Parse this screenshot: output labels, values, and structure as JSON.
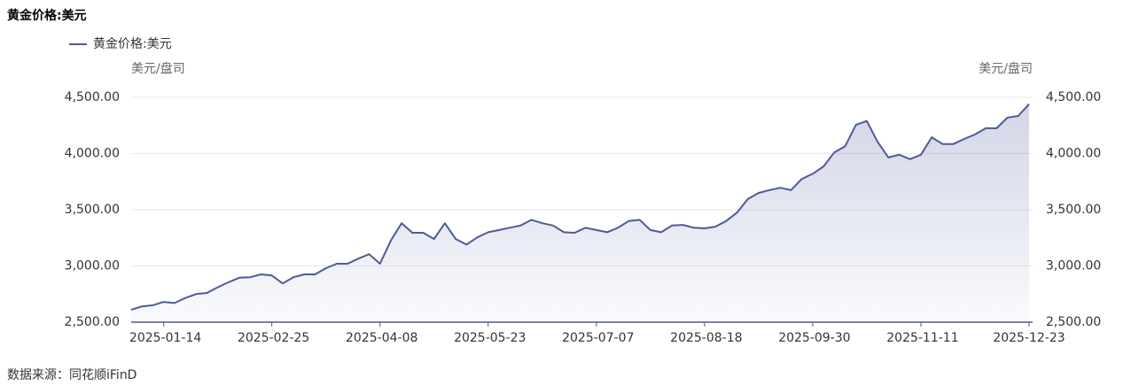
{
  "chart_data": {
    "type": "line",
    "title": "黄金价格:美元",
    "y_label": "美元/盘司",
    "y2_label": "美元/盘司",
    "source": "数据来源：同花顺iFinD",
    "categories": [
      null,
      null,
      null,
      "2025-01-14",
      null,
      null,
      null,
      null,
      null,
      null,
      null,
      null,
      null,
      "2025-02-25",
      null,
      null,
      null,
      null,
      null,
      null,
      null,
      null,
      null,
      "2025-04-08",
      null,
      null,
      null,
      null,
      null,
      null,
      null,
      null,
      null,
      "2025-05-23",
      null,
      null,
      null,
      null,
      null,
      null,
      null,
      null,
      null,
      "2025-07-07",
      null,
      null,
      null,
      null,
      null,
      null,
      null,
      null,
      null,
      "2025-08-18",
      null,
      null,
      null,
      null,
      null,
      null,
      null,
      null,
      null,
      "2025-09-30",
      null,
      null,
      null,
      null,
      null,
      null,
      null,
      null,
      null,
      "2025-11-11",
      null,
      null,
      null,
      null,
      null,
      null,
      null,
      null,
      null,
      "2025-12-23"
    ],
    "series": [
      {
        "name": "黄金价格:美元",
        "color": "#4e5a9a",
        "values": [
          2610,
          2640,
          2650,
          2680,
          2670,
          2715,
          2750,
          2760,
          2810,
          2855,
          2895,
          2900,
          2925,
          2915,
          2845,
          2900,
          2925,
          2925,
          2980,
          3020,
          3020,
          3065,
          3105,
          3020,
          3225,
          3380,
          3295,
          3295,
          3240,
          3380,
          3240,
          3190,
          3255,
          3300,
          3320,
          3340,
          3360,
          3410,
          3380,
          3360,
          3300,
          3295,
          3340,
          3320,
          3300,
          3340,
          3400,
          3410,
          3320,
          3300,
          3360,
          3365,
          3340,
          3335,
          3350,
          3400,
          3475,
          3595,
          3650,
          3675,
          3695,
          3675,
          3775,
          3820,
          3885,
          4010,
          4065,
          4255,
          4290,
          4105,
          3965,
          3990,
          3950,
          3990,
          4145,
          4085,
          4085,
          4130,
          4170,
          4225,
          4225,
          4320,
          4335,
          4440
        ]
      }
    ],
    "ylim": [
      2500,
      4500
    ],
    "yticks": [
      {
        "value": 2500,
        "label": "2,500.00"
      },
      {
        "value": 3000,
        "label": "3,000.00"
      },
      {
        "value": 3500,
        "label": "3,500.00"
      },
      {
        "value": 4000,
        "label": "4,000.00"
      },
      {
        "value": 4500,
        "label": "4,500.00"
      }
    ],
    "y2lim": [
      2500,
      4500
    ],
    "y2ticks": [
      {
        "value": 2500,
        "label": "2,500.00"
      },
      {
        "value": 3000,
        "label": "3,000.00"
      },
      {
        "value": 3500,
        "label": "3,500.00"
      },
      {
        "value": 4000,
        "label": "4,000.00"
      },
      {
        "value": 4500,
        "label": "4,500.00"
      }
    ],
    "grid": true
  }
}
